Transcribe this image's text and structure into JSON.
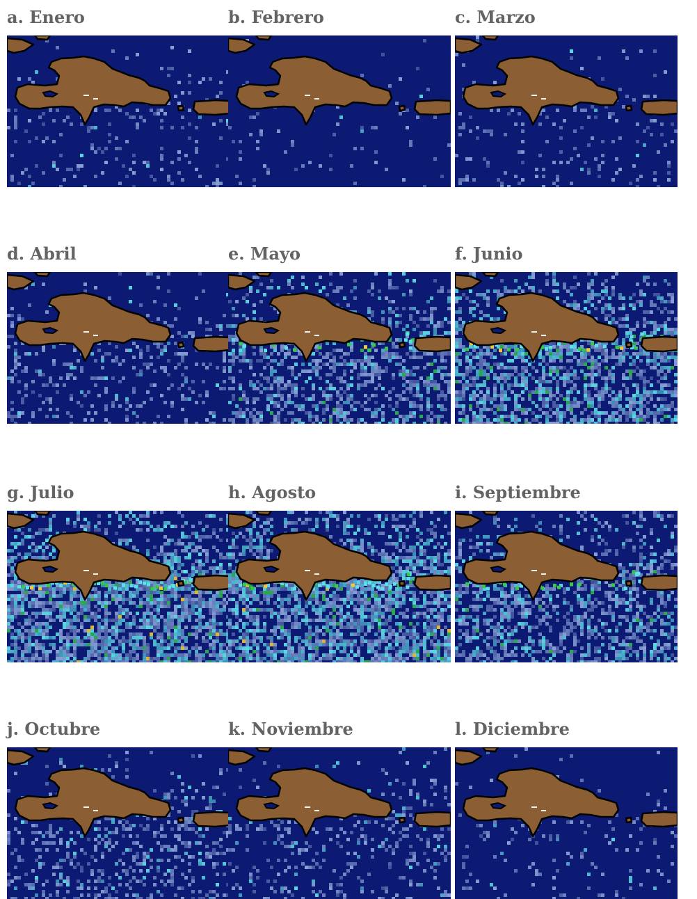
{
  "figure": {
    "colors": {
      "ocean": "#0d1a73",
      "land": "#8b5e34",
      "coastline": "#000000",
      "low_concentration": "#9db8e6",
      "mid_concentration": "#5ee0e8",
      "high_concentration": "#36c94a",
      "peak_concentration": "#f0c832"
    },
    "panels": [
      {
        "id": "a",
        "label": "a. Enero",
        "intensity": 0.12,
        "hotspots": 0.0
      },
      {
        "id": "b",
        "label": "b. Febrero",
        "intensity": 0.06,
        "hotspots": 0.0
      },
      {
        "id": "c",
        "label": "c. Marzo",
        "intensity": 0.1,
        "hotspots": 0.0
      },
      {
        "id": "d",
        "label": "d. Abril",
        "intensity": 0.22,
        "hotspots": 0.0
      },
      {
        "id": "e",
        "label": "e. Mayo",
        "intensity": 0.48,
        "hotspots": 0.18
      },
      {
        "id": "f",
        "label": "f. Junio",
        "intensity": 0.7,
        "hotspots": 0.35
      },
      {
        "id": "g",
        "label": "g. Julio",
        "intensity": 0.78,
        "hotspots": 0.5
      },
      {
        "id": "h",
        "label": "h. Agosto",
        "intensity": 0.8,
        "hotspots": 0.55
      },
      {
        "id": "i",
        "label": "i. Septiembre",
        "intensity": 0.55,
        "hotspots": 0.2
      },
      {
        "id": "j",
        "label": "j. Octubre",
        "intensity": 0.28,
        "hotspots": 0.0
      },
      {
        "id": "k",
        "label": "k. Noviembre",
        "intensity": 0.2,
        "hotspots": 0.0
      },
      {
        "id": "l",
        "label": "l. Diciembre",
        "intensity": 0.1,
        "hotspots": 0.0
      }
    ]
  }
}
